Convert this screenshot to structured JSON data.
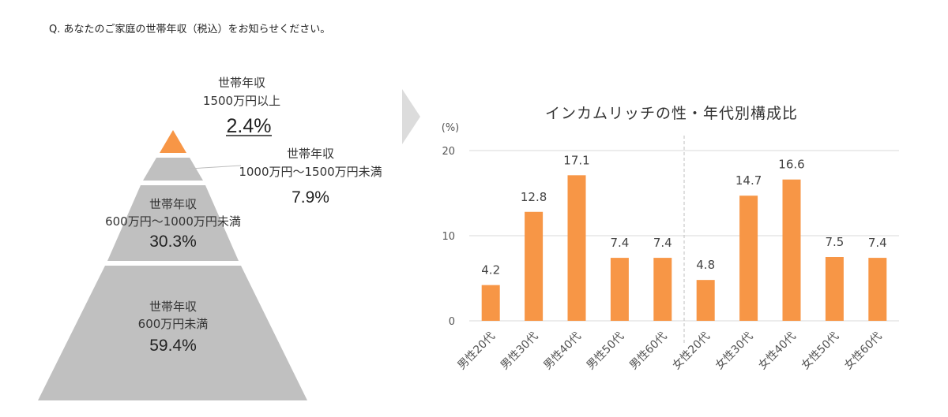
{
  "question": "Q. あなたのご家庭の世帯年収（税込）をお知らせください。",
  "colors": {
    "accent": "#f79646",
    "pyramid": "#c0c0c0",
    "arrow": "#dcdcdc",
    "grid": "#d9d9d9",
    "separator": "#bfbfbf"
  },
  "pyramid": {
    "tiers": [
      {
        "label_1": "世帯年収",
        "label_2": "1500万円以上",
        "value": "2.4%",
        "color": "#f79646"
      },
      {
        "label_1": "世帯年収",
        "label_2": "1000万円～1500万円未満",
        "value": "7.9%",
        "color": "#c0c0c0"
      },
      {
        "label_1": "世帯年収",
        "label_2": "600万円～1000万円未満",
        "value": "30.3%",
        "color": "#c0c0c0"
      },
      {
        "label_1": "世帯年収",
        "label_2": "600万円未満",
        "value": "59.4%",
        "color": "#c0c0c0"
      }
    ]
  },
  "chart_data": {
    "type": "bar",
    "title": "インカムリッチの性・年代別構成比",
    "ylabel": "(%)",
    "ylim": [
      0,
      20
    ],
    "yticks": [
      "0",
      "10",
      "20"
    ],
    "categories": [
      "男性20代",
      "男性30代",
      "男性40代",
      "男性50代",
      "男性60代",
      "女性20代",
      "女性30代",
      "女性40代",
      "女性50代",
      "女性60代"
    ],
    "values": [
      4.2,
      12.8,
      17.1,
      7.4,
      7.4,
      4.8,
      14.7,
      16.6,
      7.5,
      7.4
    ],
    "value_labels": [
      "4.2",
      "12.8",
      "17.1",
      "7.4",
      "7.4",
      "4.8",
      "14.7",
      "16.6",
      "7.5",
      "7.4"
    ],
    "grid": true,
    "color": "#f79646"
  }
}
